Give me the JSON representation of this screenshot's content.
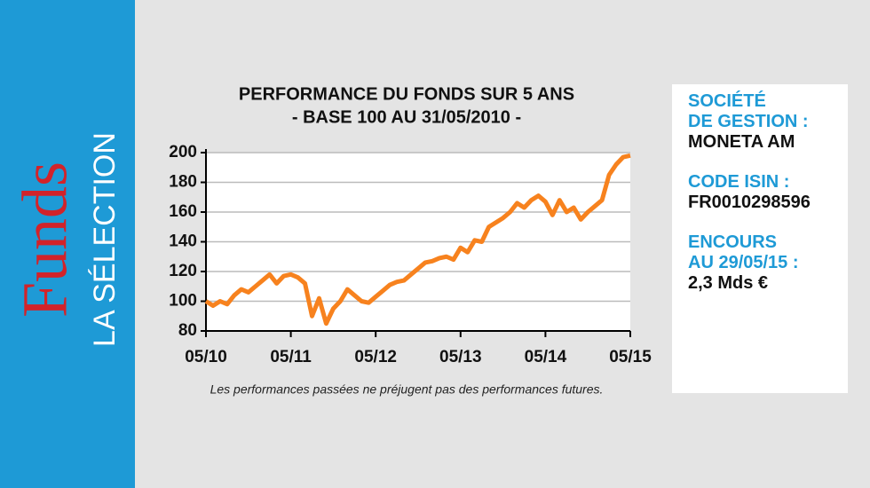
{
  "sidebar": {
    "brand": "Funds",
    "subtitle": "LA SÉLECTION"
  },
  "chart_data": {
    "type": "line",
    "title": "PERFORMANCE DU FONDS SUR 5 ANS",
    "subtitle": "- BASE 100 AU 31/05/2010 -",
    "note": "Les performances passées ne préjugent pas des performances futures.",
    "x": [
      "2010-05",
      "2010-06",
      "2010-07",
      "2010-08",
      "2010-09",
      "2010-10",
      "2010-11",
      "2010-12",
      "2011-01",
      "2011-02",
      "2011-03",
      "2011-04",
      "2011-05",
      "2011-06",
      "2011-07",
      "2011-08",
      "2011-09",
      "2011-10",
      "2011-11",
      "2011-12",
      "2012-01",
      "2012-02",
      "2012-03",
      "2012-04",
      "2012-05",
      "2012-06",
      "2012-07",
      "2012-08",
      "2012-09",
      "2012-10",
      "2012-11",
      "2012-12",
      "2013-01",
      "2013-02",
      "2013-03",
      "2013-04",
      "2013-05",
      "2013-06",
      "2013-07",
      "2013-08",
      "2013-09",
      "2013-10",
      "2013-11",
      "2013-12",
      "2014-01",
      "2014-02",
      "2014-03",
      "2014-04",
      "2014-05",
      "2014-06",
      "2014-07",
      "2014-08",
      "2014-09",
      "2014-10",
      "2014-11",
      "2014-12",
      "2015-01",
      "2015-02",
      "2015-03",
      "2015-04",
      "2015-05"
    ],
    "series": [
      {
        "name": "Fonds",
        "color": "#f7821e",
        "values": [
          100,
          97,
          100,
          98,
          104,
          108,
          106,
          110,
          114,
          118,
          112,
          117,
          118,
          116,
          112,
          90,
          102,
          85,
          95,
          100,
          108,
          104,
          100,
          99,
          103,
          107,
          111,
          113,
          114,
          118,
          122,
          126,
          127,
          129,
          130,
          128,
          136,
          133,
          141,
          140,
          150,
          153,
          156,
          160,
          166,
          163,
          168,
          171,
          167,
          158,
          168,
          160,
          163,
          155,
          160,
          164,
          168,
          185,
          192,
          197,
          198
        ]
      }
    ],
    "xlim": [
      "2010-05",
      "2015-05"
    ],
    "xticks": [
      {
        "value": "2010-05",
        "label": "05/10"
      },
      {
        "value": "2011-05",
        "label": "05/11"
      },
      {
        "value": "2012-05",
        "label": "05/12"
      },
      {
        "value": "2013-05",
        "label": "05/13"
      },
      {
        "value": "2014-05",
        "label": "05/14"
      },
      {
        "value": "2015-05",
        "label": "05/15"
      }
    ],
    "ylim": [
      80,
      200
    ],
    "yticks": [
      80,
      100,
      120,
      140,
      160,
      180,
      200
    ],
    "grid": true
  },
  "info_panel": [
    {
      "label": "SOCIÉTÉ\nDE GESTION :",
      "value": "MONETA AM"
    },
    {
      "label": "CODE ISIN :",
      "value": "FR0010298596"
    },
    {
      "label": "ENCOURS\nAU 29/05/15 :",
      "value": "2,3 Mds €"
    }
  ]
}
